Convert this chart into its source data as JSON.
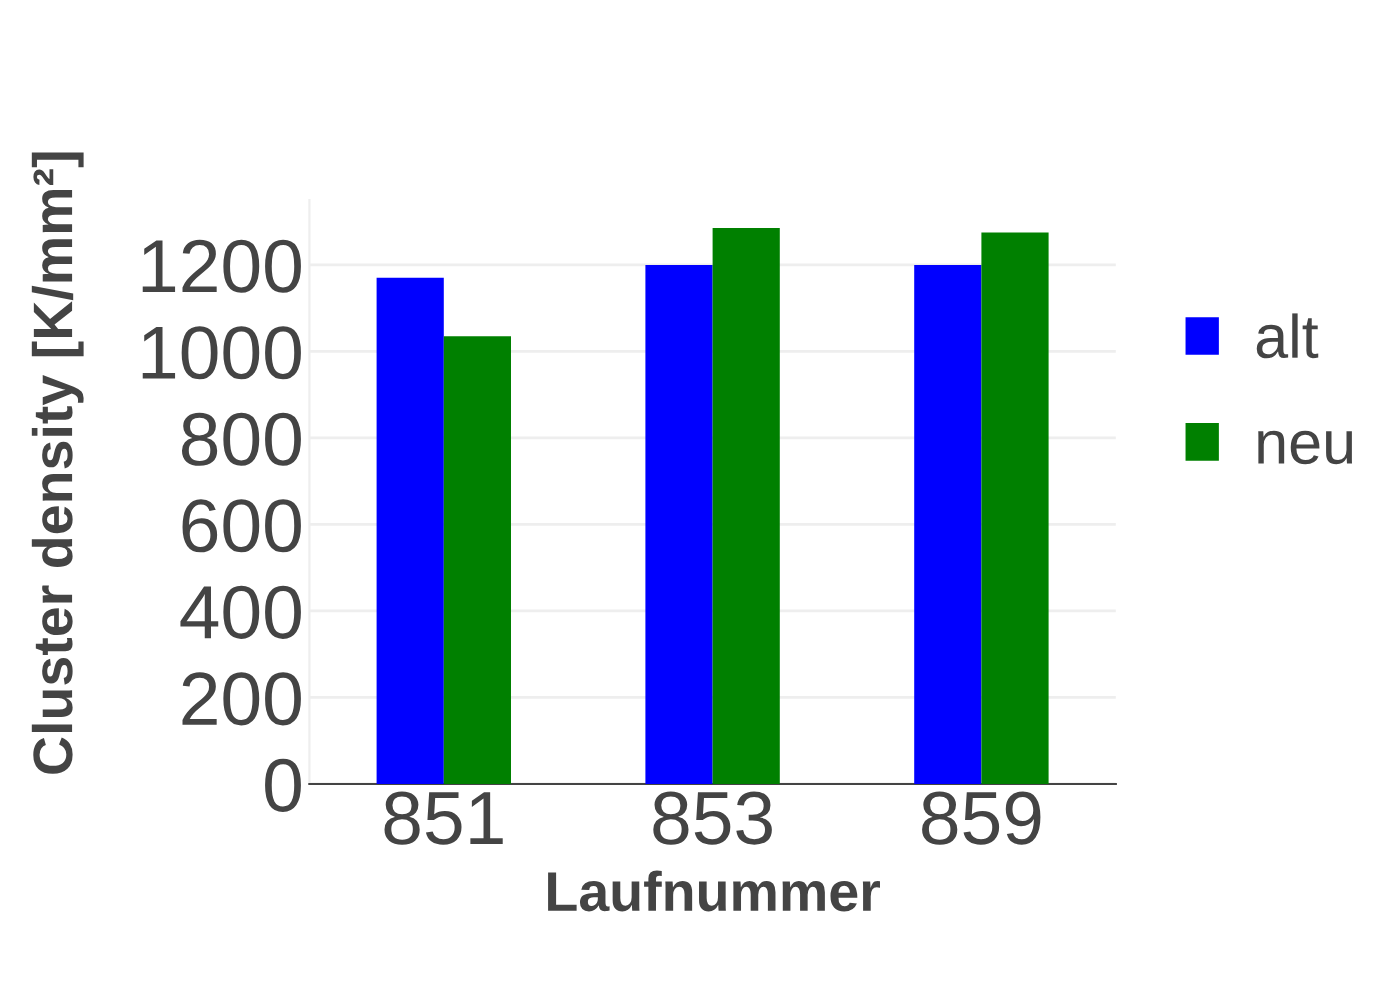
{
  "chart_data": {
    "type": "bar",
    "xlabel": "Laufnummer",
    "ylabel": "Cluster density [K/mm²]",
    "categories": [
      "851",
      "853",
      "859"
    ],
    "series": [
      {
        "name": "alt",
        "color": "#0000ff",
        "values": [
          1170,
          1200,
          1200
        ]
      },
      {
        "name": "neu",
        "color": "#008000",
        "values": [
          1035,
          1285,
          1275
        ]
      }
    ],
    "ylim": [
      0,
      1350
    ],
    "yticks": [
      0,
      200,
      400,
      600,
      800,
      1000,
      1200
    ],
    "grid": "y",
    "legend": "right"
  }
}
